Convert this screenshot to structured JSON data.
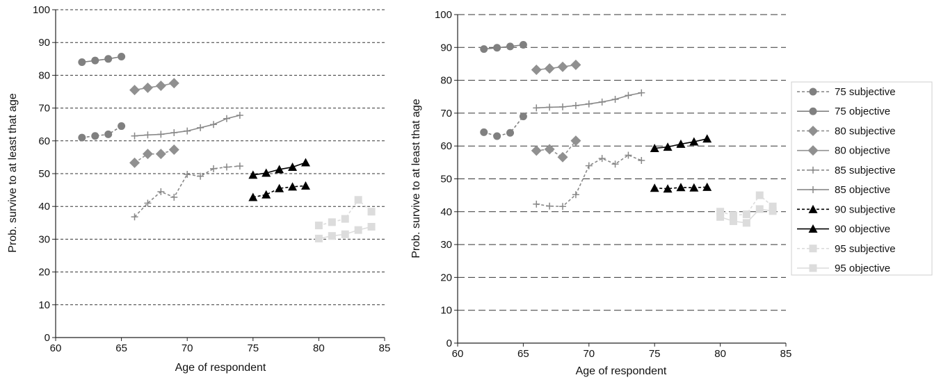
{
  "chart_data": [
    {
      "type": "line",
      "xlabel": "Age of respondent",
      "ylabel": "Prob. survive to at least that age",
      "xlim": [
        60,
        85
      ],
      "ylim": [
        0,
        100
      ],
      "xticks": [
        60,
        65,
        70,
        75,
        80,
        85
      ],
      "yticks": [
        0,
        10,
        20,
        30,
        40,
        50,
        60,
        70,
        80,
        90,
        100
      ],
      "grid": "horizontal dashed",
      "series": [
        {
          "name": "75 subjective",
          "marker": "circle",
          "dashed": true,
          "color": "#808080",
          "x": [
            62,
            63,
            64,
            65
          ],
          "y": [
            61,
            61.5,
            62,
            64.5
          ]
        },
        {
          "name": "75 objective",
          "marker": "circle",
          "dashed": false,
          "color": "#808080",
          "x": [
            62,
            63,
            64,
            65
          ],
          "y": [
            84,
            84.5,
            85,
            85.7
          ]
        },
        {
          "name": "80 subjective",
          "marker": "diamond",
          "dashed": true,
          "color": "#909090",
          "x": [
            66,
            67,
            68,
            69
          ],
          "y": [
            53.3,
            56,
            56,
            57.3
          ]
        },
        {
          "name": "80 objective",
          "marker": "diamond",
          "dashed": false,
          "color": "#909090",
          "x": [
            66,
            67,
            68,
            69
          ],
          "y": [
            75.5,
            76.2,
            76.8,
            77.6
          ]
        },
        {
          "name": "85 subjective",
          "marker": "plus",
          "dashed": true,
          "color": "#888888",
          "x": [
            66,
            67,
            68,
            69,
            70,
            71,
            72,
            73,
            74
          ],
          "y": [
            36.8,
            41,
            44.5,
            42.8,
            49.8,
            49.2,
            51.5,
            52,
            52.3
          ]
        },
        {
          "name": "85 objective",
          "marker": "plus",
          "dashed": false,
          "color": "#888888",
          "x": [
            66,
            67,
            68,
            69,
            70,
            71,
            72,
            73,
            74
          ],
          "y": [
            61.5,
            61.8,
            62,
            62.5,
            63,
            64,
            65,
            66.8,
            67.8
          ]
        },
        {
          "name": "90 subjective",
          "marker": "triangle",
          "dashed": true,
          "color": "#000000",
          "x": [
            75,
            76,
            77,
            78,
            79
          ],
          "y": [
            42.8,
            43.6,
            45.5,
            46,
            46.3
          ]
        },
        {
          "name": "90 objective",
          "marker": "triangle",
          "dashed": false,
          "color": "#000000",
          "x": [
            75,
            76,
            77,
            78,
            79
          ],
          "y": [
            49.6,
            50.2,
            51.3,
            52,
            53.4
          ]
        },
        {
          "name": "95 subjective",
          "marker": "square",
          "dashed": true,
          "color": "#dcdcdc",
          "x": [
            80,
            81,
            82,
            83,
            84
          ],
          "y": [
            34.2,
            35.2,
            36.2,
            42,
            38.4
          ]
        },
        {
          "name": "95 objective",
          "marker": "square",
          "dashed": false,
          "color": "#dcdcdc",
          "x": [
            80,
            81,
            82,
            83,
            84
          ],
          "y": [
            30.2,
            31,
            31.5,
            32.8,
            33.8
          ]
        }
      ]
    },
    {
      "type": "line",
      "xlabel": "Age of respondent",
      "ylabel": "Prob. survive to at least that age",
      "xlim": [
        60,
        85
      ],
      "ylim": [
        0,
        100
      ],
      "xticks": [
        60,
        65,
        70,
        75,
        80,
        85
      ],
      "yticks": [
        0,
        10,
        20,
        30,
        40,
        50,
        60,
        70,
        80,
        90,
        100
      ],
      "grid": "horizontal dashed",
      "legend": "right",
      "series": [
        {
          "name": "75 subjective",
          "marker": "circle",
          "dashed": true,
          "color": "#808080",
          "x": [
            62,
            63,
            64,
            65
          ],
          "y": [
            64.2,
            63,
            64,
            69
          ]
        },
        {
          "name": "75 objective",
          "marker": "circle",
          "dashed": false,
          "color": "#808080",
          "x": [
            62,
            63,
            64,
            65
          ],
          "y": [
            89.5,
            89.9,
            90.3,
            90.8
          ]
        },
        {
          "name": "80 subjective",
          "marker": "diamond",
          "dashed": true,
          "color": "#909090",
          "x": [
            66,
            67,
            68,
            69
          ],
          "y": [
            58.6,
            59,
            56.6,
            61.6
          ]
        },
        {
          "name": "80 objective",
          "marker": "diamond",
          "dashed": false,
          "color": "#909090",
          "x": [
            66,
            67,
            68,
            69
          ],
          "y": [
            83.2,
            83.6,
            84.1,
            84.7
          ]
        },
        {
          "name": "85 subjective",
          "marker": "plus",
          "dashed": true,
          "color": "#888888",
          "x": [
            66,
            67,
            68,
            69,
            70,
            71,
            72,
            73,
            74
          ],
          "y": [
            42.3,
            41.7,
            41.6,
            45.2,
            54,
            56.2,
            54.5,
            57.2,
            55.6
          ]
        },
        {
          "name": "85 objective",
          "marker": "plus",
          "dashed": false,
          "color": "#888888",
          "x": [
            66,
            67,
            68,
            69,
            70,
            71,
            72,
            73,
            74
          ],
          "y": [
            71.6,
            71.8,
            71.9,
            72.3,
            72.8,
            73.4,
            74.2,
            75.4,
            76.2
          ]
        },
        {
          "name": "90 subjective",
          "marker": "triangle",
          "dashed": true,
          "color": "#000000",
          "x": [
            75,
            76,
            77,
            78,
            79
          ],
          "y": [
            47.2,
            47,
            47.4,
            47.3,
            47.5
          ]
        },
        {
          "name": "90 objective",
          "marker": "triangle",
          "dashed": false,
          "color": "#000000",
          "x": [
            75,
            76,
            77,
            78,
            79
          ],
          "y": [
            59.3,
            59.7,
            60.6,
            61.3,
            62.2
          ]
        },
        {
          "name": "95 subjective",
          "marker": "square",
          "dashed": true,
          "color": "#dcdcdc",
          "x": [
            80,
            81,
            82,
            83,
            84
          ],
          "y": [
            40,
            38.9,
            39.2,
            45,
            41.6
          ]
        },
        {
          "name": "95 objective",
          "marker": "square",
          "dashed": false,
          "color": "#dcdcdc",
          "x": [
            80,
            81,
            82,
            83,
            84
          ],
          "y": [
            38.4,
            37.1,
            36.6,
            40.8,
            40.2
          ]
        }
      ]
    }
  ]
}
